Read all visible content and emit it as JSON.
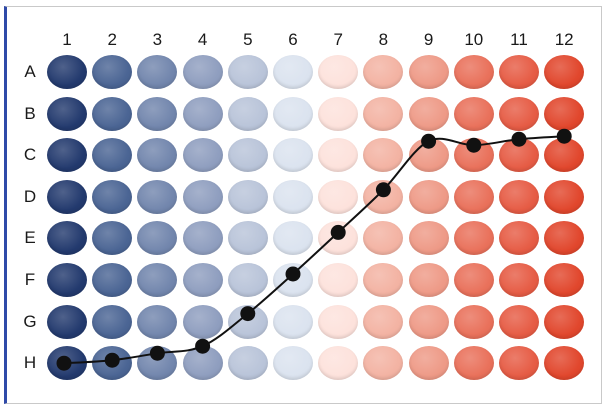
{
  "plate": {
    "columns": [
      "1",
      "2",
      "3",
      "4",
      "5",
      "6",
      "7",
      "8",
      "9",
      "10",
      "11",
      "12"
    ],
    "rows": [
      "A",
      "B",
      "C",
      "D",
      "E",
      "F",
      "G",
      "H"
    ],
    "column_colors": [
      "#233a6e",
      "#4b6594",
      "#7286ad",
      "#8f9ebf",
      "#b9c4d9",
      "#dbe3ef",
      "#fde2dc",
      "#f3b3a3",
      "#ee9a87",
      "#e9715b",
      "#e65c45",
      "#e1472d"
    ]
  },
  "curve": {
    "color": "#111111",
    "points": [
      {
        "col": 1,
        "row": "H"
      },
      {
        "col": 2,
        "row": "H"
      },
      {
        "col": 3,
        "row": "H"
      },
      {
        "col": 4,
        "row": "H"
      },
      {
        "col": 5,
        "row": "G"
      },
      {
        "col": 6,
        "row": "F"
      },
      {
        "col": 7,
        "row": "E"
      },
      {
        "col": 8,
        "row": "D"
      },
      {
        "col": 9,
        "row": "C"
      },
      {
        "col": 10,
        "row": "C"
      },
      {
        "col": 11,
        "row": "C"
      },
      {
        "col": 12,
        "row": "C"
      }
    ]
  }
}
